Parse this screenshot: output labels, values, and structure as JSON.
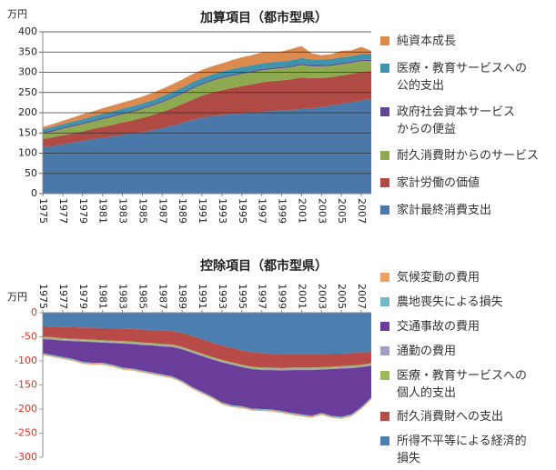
{
  "chart_data": [
    {
      "type": "stacked-area",
      "title": "加算項目（都市型県）",
      "ylabel": "万円",
      "x": [
        1975,
        1976,
        1977,
        1978,
        1979,
        1980,
        1981,
        1982,
        1983,
        1984,
        1985,
        1986,
        1987,
        1988,
        1989,
        1990,
        1991,
        1992,
        1993,
        1994,
        1995,
        1996,
        1997,
        1998,
        1999,
        2000,
        2001,
        2002,
        2003,
        2004,
        2005,
        2006,
        2007,
        2008
      ],
      "xlim": [
        1975,
        2008
      ],
      "xticks": [
        1975,
        1977,
        1979,
        1981,
        1983,
        1985,
        1987,
        1989,
        1991,
        1993,
        1995,
        1997,
        1999,
        2001,
        2003,
        2005,
        2007
      ],
      "ylim": [
        0,
        400
      ],
      "yticks": [
        0,
        50,
        100,
        150,
        200,
        250,
        300,
        350,
        400
      ],
      "grid": true,
      "xaxis_position": "bottom",
      "series": [
        {
          "name": "家計最終消費支出",
          "color": "#4a78a8",
          "values": [
            115,
            118,
            122,
            126,
            130,
            135,
            138,
            141,
            145,
            148,
            152,
            157,
            162,
            168,
            175,
            182,
            188,
            192,
            194,
            196,
            198,
            200,
            203,
            204,
            205,
            207,
            209,
            211,
            214,
            218,
            222,
            226,
            230,
            235
          ]
        },
        {
          "name": "家計労働の価値",
          "color": "#b04a45",
          "values": [
            20,
            21,
            22,
            23,
            24,
            25,
            27,
            29,
            31,
            33,
            35,
            37,
            40,
            43,
            46,
            50,
            54,
            58,
            62,
            65,
            68,
            70,
            72,
            74,
            75,
            76,
            78,
            74,
            72,
            70,
            70,
            70,
            71,
            68
          ]
        },
        {
          "name": "耐久消費財からのサービス",
          "color": "#8eaa50",
          "values": [
            14,
            15,
            16,
            17,
            18,
            18,
            19,
            20,
            20,
            21,
            22,
            23,
            24,
            25,
            26,
            27,
            28,
            29,
            30,
            30,
            30,
            30,
            30,
            30,
            30,
            30,
            31,
            30,
            29,
            28,
            28,
            27,
            27,
            25
          ]
        },
        {
          "name": "政府社会資本サービス\nからの便益",
          "color": "#5e4690",
          "values": [
            3,
            3,
            3,
            3,
            3,
            3,
            3,
            3,
            3,
            3,
            3,
            3,
            3,
            3,
            3,
            3,
            3,
            3,
            3,
            3,
            3,
            3,
            3,
            3,
            3,
            3,
            3,
            3,
            3,
            3,
            3,
            3,
            3,
            3
          ]
        },
        {
          "name": "医療・教育サービスへの\n公的支出",
          "color": "#3f93ad",
          "values": [
            8,
            8,
            9,
            9,
            9,
            10,
            10,
            10,
            11,
            11,
            11,
            11,
            12,
            12,
            12,
            13,
            13,
            13,
            13,
            14,
            14,
            14,
            14,
            14,
            14,
            14,
            14,
            14,
            14,
            14,
            14,
            14,
            14,
            14
          ]
        },
        {
          "name": "純資本成長",
          "color": "#dc8a4e",
          "values": [
            5,
            7,
            8,
            10,
            12,
            12,
            14,
            15,
            15,
            16,
            17,
            18,
            18,
            19,
            20,
            20,
            20,
            20,
            20,
            22,
            24,
            25,
            27,
            25,
            24,
            28,
            30,
            15,
            10,
            12,
            16,
            14,
            18,
            8
          ]
        }
      ]
    },
    {
      "type": "stacked-area",
      "title": "控除項目（都市型県）",
      "ylabel": "万円",
      "x": [
        1975,
        1976,
        1977,
        1978,
        1979,
        1980,
        1981,
        1982,
        1983,
        1984,
        1985,
        1986,
        1987,
        1988,
        1989,
        1990,
        1991,
        1992,
        1993,
        1994,
        1995,
        1996,
        1997,
        1998,
        1999,
        2000,
        2001,
        2002,
        2003,
        2004,
        2005,
        2006,
        2007,
        2008
      ],
      "xlim": [
        1975,
        2008
      ],
      "xticks": [
        1975,
        1977,
        1979,
        1981,
        1983,
        1985,
        1987,
        1989,
        1991,
        1993,
        1995,
        1997,
        1999,
        2001,
        2003,
        2005,
        2007
      ],
      "ylim": [
        -300,
        0
      ],
      "yticks": [
        -300,
        -250,
        -200,
        -150,
        -100,
        -50,
        0
      ],
      "grid": false,
      "xaxis_position": "top",
      "series": [
        {
          "name": "所得不平等による経済的\n損失",
          "color": "#4a7fb0",
          "values": [
            -28,
            -29,
            -30,
            -30,
            -31,
            -31,
            -32,
            -32,
            -33,
            -34,
            -35,
            -36,
            -37,
            -38,
            -42,
            -48,
            -55,
            -62,
            -68,
            -73,
            -78,
            -82,
            -84,
            -85,
            -86,
            -86,
            -86,
            -86,
            -86,
            -85,
            -85,
            -84,
            -83,
            -80
          ]
        },
        {
          "name": "耐久消費財への支出",
          "color": "#b84a48",
          "values": [
            -22,
            -22,
            -23,
            -24,
            -24,
            -25,
            -25,
            -26,
            -26,
            -26,
            -27,
            -27,
            -28,
            -28,
            -29,
            -30,
            -30,
            -30,
            -30,
            -30,
            -30,
            -30,
            -30,
            -29,
            -29,
            -28,
            -28,
            -28,
            -27,
            -27,
            -26,
            -26,
            -25,
            -25
          ]
        },
        {
          "name": "医療・教育サービスへの\n個人的支出",
          "color": "#9cba5c",
          "values": [
            -3,
            -3,
            -3,
            -3,
            -3,
            -3,
            -3,
            -3,
            -3,
            -3,
            -3,
            -3,
            -3,
            -3,
            -3,
            -3,
            -3,
            -3,
            -3,
            -3,
            -3,
            -3,
            -3,
            -3,
            -3,
            -3,
            -3,
            -3,
            -3,
            -3,
            -3,
            -3,
            -3,
            -3
          ]
        },
        {
          "name": "通勤の費用",
          "color": "#a59cc8",
          "values": [
            -2,
            -2,
            -2,
            -2,
            -2,
            -2,
            -2,
            -2,
            -2,
            -2,
            -2,
            -2,
            -2,
            -2,
            -2,
            -2,
            -2,
            -2,
            -2,
            -2,
            -2,
            -2,
            -2,
            -2,
            -2,
            -2,
            -2,
            -2,
            -2,
            -2,
            -2,
            -2,
            -2,
            -2
          ]
        },
        {
          "name": "交通事故の費用",
          "color": "#6a3d9a",
          "values": [
            -29,
            -32,
            -34,
            -37,
            -42,
            -43,
            -42,
            -45,
            -50,
            -51,
            -53,
            -56,
            -58,
            -61,
            -65,
            -71,
            -74,
            -77,
            -83,
            -84,
            -81,
            -82,
            -81,
            -82,
            -84,
            -89,
            -92,
            -95,
            -90,
            -97,
            -100,
            -96,
            -83,
            -66
          ]
        },
        {
          "name": "農地喪失による損失",
          "color": "#72b8cc",
          "values": [
            -2,
            -2,
            -2,
            -2,
            -2,
            -2,
            -2,
            -2,
            -2,
            -2,
            -2,
            -2,
            -2,
            -2,
            -2,
            -2,
            -2,
            -2,
            -2,
            -2,
            -2,
            -2,
            -2,
            -2,
            -2,
            -2,
            -2,
            -2,
            -2,
            -2,
            -2,
            -2,
            -2,
            -2
          ]
        },
        {
          "name": "気候変動の費用",
          "color": "#f0a060",
          "values": [
            -2,
            -2,
            -2,
            -2,
            -2,
            -2,
            -2,
            -2,
            -2,
            -2,
            -2,
            -2,
            -2,
            -2,
            -2,
            -2,
            -2,
            -2,
            -2,
            -2,
            -2,
            -2,
            -2,
            -2,
            -2,
            -2,
            -2,
            -2,
            -2,
            -2,
            -2,
            -2,
            -2,
            -2
          ]
        }
      ]
    }
  ]
}
